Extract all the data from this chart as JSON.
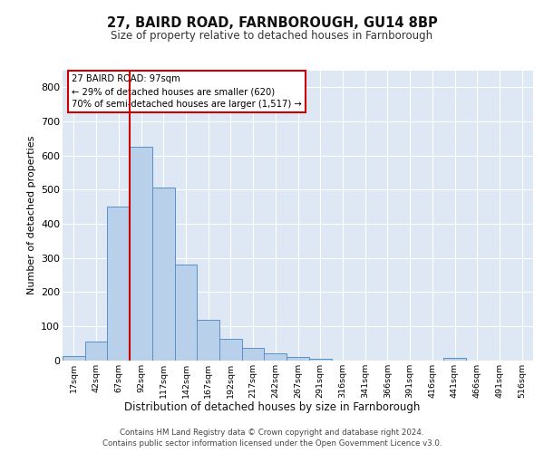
{
  "title1": "27, BAIRD ROAD, FARNBOROUGH, GU14 8BP",
  "title2": "Size of property relative to detached houses in Farnborough",
  "xlabel": "Distribution of detached houses by size in Farnborough",
  "ylabel": "Number of detached properties",
  "bin_labels": [
    "17sqm",
    "42sqm",
    "67sqm",
    "92sqm",
    "117sqm",
    "142sqm",
    "167sqm",
    "192sqm",
    "217sqm",
    "242sqm",
    "267sqm",
    "291sqm",
    "316sqm",
    "341sqm",
    "366sqm",
    "391sqm",
    "416sqm",
    "441sqm",
    "466sqm",
    "491sqm",
    "516sqm"
  ],
  "bar_values": [
    12,
    55,
    450,
    625,
    505,
    280,
    118,
    62,
    35,
    20,
    10,
    5,
    0,
    0,
    0,
    0,
    0,
    7,
    0,
    0,
    0
  ],
  "bar_color": "#b8d0ea",
  "bar_edge_color": "#5b8fc9",
  "vline_color": "#cc0000",
  "annotation_title": "27 BAIRD ROAD: 97sqm",
  "annotation_line1": "← 29% of detached houses are smaller (620)",
  "annotation_line2": "70% of semi-detached houses are larger (1,517) →",
  "annotation_box_color": "#ffffff",
  "annotation_box_edge_color": "#cc0000",
  "ylim": [
    0,
    850
  ],
  "yticks": [
    0,
    100,
    200,
    300,
    400,
    500,
    600,
    700,
    800
  ],
  "background_color": "#dde8f4",
  "footer1": "Contains HM Land Registry data © Crown copyright and database right 2024.",
  "footer2": "Contains public sector information licensed under the Open Government Licence v3.0."
}
